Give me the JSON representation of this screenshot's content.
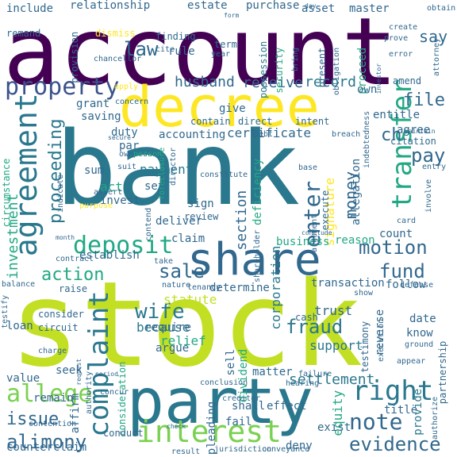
{
  "words": [
    {
      "text": "account",
      "color": "#440154"
    },
    {
      "text": "bank",
      "color": "#2a788e"
    },
    {
      "text": "stock",
      "color": "#c2df23"
    },
    {
      "text": "decree",
      "color": "#fde725"
    },
    {
      "text": "party",
      "color": "#2a788e"
    },
    {
      "text": "share",
      "color": "#31688e"
    },
    {
      "text": "agreement",
      "color": "#2a788e"
    },
    {
      "text": "property",
      "color": "#3b528b"
    },
    {
      "text": "interest",
      "color": "#7ad151"
    },
    {
      "text": "complaint",
      "color": "#2a788e"
    },
    {
      "text": "deposit",
      "color": "#22a884"
    },
    {
      "text": "right",
      "color": "#2a788e"
    },
    {
      "text": "allege",
      "color": "#7ad151"
    },
    {
      "text": "alimony",
      "color": "#31688e"
    },
    {
      "text": "note",
      "color": "#31688e"
    },
    {
      "text": "transfer",
      "color": "#22a884"
    },
    {
      "text": "enter",
      "color": "#31688e"
    },
    {
      "text": "proceeding",
      "color": "#2a788e"
    },
    {
      "text": "wife",
      "color": "#2a788e"
    },
    {
      "text": "sale",
      "color": "#31688e"
    },
    {
      "text": "action",
      "color": "#22a884"
    },
    {
      "text": "motion",
      "color": "#31688e"
    },
    {
      "text": "fund",
      "color": "#31688e"
    },
    {
      "text": "evidence",
      "color": "#31688e"
    },
    {
      "text": "fraud",
      "color": "#2a788e"
    },
    {
      "text": "issue",
      "color": "#31688e"
    },
    {
      "text": "file",
      "color": "#31688e"
    },
    {
      "text": "pay",
      "color": "#31688e"
    },
    {
      "text": "say",
      "color": "#31688e"
    },
    {
      "text": "law",
      "color": "#31688e"
    },
    {
      "text": "money",
      "color": "#31688e"
    },
    {
      "text": "investment",
      "color": "#22a884"
    },
    {
      "text": "section",
      "color": "#31688e"
    },
    {
      "text": "corporation",
      "color": "#2a788e"
    },
    {
      "text": "husband",
      "color": "#31688e"
    },
    {
      "text": "receive",
      "color": "#31688e"
    },
    {
      "text": "record",
      "color": "#2a788e"
    },
    {
      "text": "payment",
      "color": "#2a788e"
    },
    {
      "text": "certificate",
      "color": "#31688e"
    },
    {
      "text": "accounting",
      "color": "#31688e"
    },
    {
      "text": "signature",
      "color": "#fde725"
    },
    {
      "text": "settlement",
      "color": "#2a788e"
    },
    {
      "text": "support",
      "color": "#2a788e"
    },
    {
      "text": "trust",
      "color": "#31688e"
    },
    {
      "text": "relief",
      "color": "#22a884"
    },
    {
      "text": "because",
      "color": "#2a788e"
    },
    {
      "text": "equity",
      "color": "#22a884"
    },
    {
      "text": "provide",
      "color": "#2a788e"
    },
    {
      "text": "include",
      "color": "#31688e"
    },
    {
      "text": "relationship",
      "color": "#31688e"
    },
    {
      "text": "estate",
      "color": "#31688e"
    },
    {
      "text": "purchase",
      "color": "#31688e"
    },
    {
      "text": "asset",
      "color": "#31688e"
    },
    {
      "text": "master",
      "color": "#31688e"
    },
    {
      "text": "remand",
      "color": "#31688e"
    },
    {
      "text": "dismiss",
      "color": "#fde725"
    },
    {
      "text": "finding",
      "color": "#31688e"
    },
    {
      "text": "rule",
      "color": "#31688e"
    },
    {
      "text": "term",
      "color": "#31688e"
    },
    {
      "text": "year",
      "color": "#31688e"
    },
    {
      "text": "possession",
      "color": "#2a788e"
    },
    {
      "text": "security",
      "color": "#22a884"
    },
    {
      "text": "proceed",
      "color": "#22a884"
    },
    {
      "text": "present",
      "color": "#31688e"
    },
    {
      "text": "obligation",
      "color": "#31688e"
    },
    {
      "text": "provision",
      "color": "#31688e"
    },
    {
      "text": "chancellor",
      "color": "#31688e"
    },
    {
      "text": "grant",
      "color": "#31688e"
    },
    {
      "text": "concern",
      "color": "#31688e"
    },
    {
      "text": "saving",
      "color": "#31688e"
    },
    {
      "text": "duty",
      "color": "#31688e"
    },
    {
      "text": "par",
      "color": "#31688e"
    },
    {
      "text": "sum",
      "color": "#31688e"
    },
    {
      "text": "act",
      "color": "#22a884"
    },
    {
      "text": "invest",
      "color": "#31688e"
    },
    {
      "text": "set",
      "color": "#31688e"
    },
    {
      "text": "give",
      "color": "#31688e"
    },
    {
      "text": "contain",
      "color": "#31688e"
    },
    {
      "text": "direct",
      "color": "#31688e"
    },
    {
      "text": "intent",
      "color": "#31688e"
    },
    {
      "text": "entitle",
      "color": "#31688e"
    },
    {
      "text": "agree",
      "color": "#31688e"
    },
    {
      "text": "deficiency",
      "color": "#22a884"
    },
    {
      "text": "allegation",
      "color": "#31688e"
    },
    {
      "text": "execute",
      "color": "#31688e"
    },
    {
      "text": "ch",
      "color": "#31688e"
    },
    {
      "text": "apply",
      "color": "#fde725"
    },
    {
      "text": "amend",
      "color": "#31688e"
    },
    {
      "text": "citation",
      "color": "#31688e"
    },
    {
      "text": "breach",
      "color": "#31688e"
    },
    {
      "text": "debt",
      "color": "#31688e"
    },
    {
      "text": "director",
      "color": "#31688e"
    },
    {
      "text": "own",
      "color": "#31688e"
    },
    {
      "text": "foreclosure",
      "color": "#22a884"
    },
    {
      "text": "ownership",
      "color": "#31688e"
    },
    {
      "text": "circumstance",
      "color": "#22a884"
    },
    {
      "text": "indicate",
      "color": "#31688e"
    },
    {
      "text": "suit",
      "color": "#31688e"
    },
    {
      "text": "person",
      "color": "#22a884"
    },
    {
      "text": "assert",
      "color": "#31688e"
    },
    {
      "text": "purpose",
      "color": "#fde725"
    },
    {
      "text": "constitute",
      "color": "#31688e"
    },
    {
      "text": "sign",
      "color": "#31688e"
    },
    {
      "text": "review",
      "color": "#31688e"
    },
    {
      "text": "contend",
      "color": "#31688e"
    },
    {
      "text": "deliver",
      "color": "#31688e"
    },
    {
      "text": "establish",
      "color": "#31688e"
    },
    {
      "text": "claim",
      "color": "#31688e"
    },
    {
      "text": "take",
      "color": "#31688e"
    },
    {
      "text": "business",
      "color": "#22a884"
    },
    {
      "text": "shareholder",
      "color": "#31688e"
    },
    {
      "text": "reason",
      "color": "#22a884"
    },
    {
      "text": "count",
      "color": "#31688e"
    },
    {
      "text": "follow",
      "color": "#31688e"
    },
    {
      "text": "card",
      "color": "#31688e"
    },
    {
      "text": "entry",
      "color": "#31688e"
    },
    {
      "text": "involve",
      "color": "#31688e"
    },
    {
      "text": "base",
      "color": "#31688e"
    },
    {
      "text": "argument",
      "color": "#31688e"
    },
    {
      "text": "conclude",
      "color": "#31688e"
    },
    {
      "text": "statute",
      "color": "#c2df23"
    },
    {
      "text": "raise",
      "color": "#31688e"
    },
    {
      "text": "determine",
      "color": "#31688e"
    },
    {
      "text": "transaction",
      "color": "#31688e"
    },
    {
      "text": "show",
      "color": "#31688e"
    },
    {
      "text": "reverse",
      "color": "#31688e"
    },
    {
      "text": "testimony",
      "color": "#31688e"
    },
    {
      "text": "execution",
      "color": "#31688e"
    },
    {
      "text": "consider",
      "color": "#31688e"
    },
    {
      "text": "circuit",
      "color": "#31688e"
    },
    {
      "text": "loan",
      "color": "#31688e"
    },
    {
      "text": "charge",
      "color": "#31688e"
    },
    {
      "text": "require",
      "color": "#31688e"
    },
    {
      "text": "argue",
      "color": "#31688e"
    },
    {
      "text": "consideration",
      "color": "#22a884"
    },
    {
      "text": "sell",
      "color": "#31688e"
    },
    {
      "text": "dividend",
      "color": "#22a884"
    },
    {
      "text": "cash",
      "color": "#31688e"
    },
    {
      "text": "date",
      "color": "#31688e"
    },
    {
      "text": "know",
      "color": "#31688e"
    },
    {
      "text": "ground",
      "color": "#31688e"
    },
    {
      "text": "value",
      "color": "#31688e"
    },
    {
      "text": "seek",
      "color": "#31688e"
    },
    {
      "text": "remain",
      "color": "#31688e"
    },
    {
      "text": "affirm",
      "color": "#31688e"
    },
    {
      "text": "authority",
      "color": "#31688e"
    },
    {
      "text": "concur",
      "color": "#31688e"
    },
    {
      "text": "conclusion",
      "color": "#31688e"
    },
    {
      "text": "matter",
      "color": "#31688e"
    },
    {
      "text": "hearing",
      "color": "#31688e"
    },
    {
      "text": "failure",
      "color": "#31688e"
    },
    {
      "text": "appear",
      "color": "#31688e"
    },
    {
      "text": "partnership",
      "color": "#31688e"
    },
    {
      "text": "counterclaim",
      "color": "#31688e"
    },
    {
      "text": "contention",
      "color": "#31688e"
    },
    {
      "text": "conduct",
      "color": "#31688e"
    },
    {
      "text": "pleading",
      "color": "#31688e"
    },
    {
      "text": "shall",
      "color": "#31688e"
    },
    {
      "text": "effect",
      "color": "#31688e"
    },
    {
      "text": "fail",
      "color": "#31688e"
    },
    {
      "text": "creditor",
      "color": "#31688e"
    },
    {
      "text": "exist",
      "color": "#31688e"
    },
    {
      "text": "title",
      "color": "#31688e"
    },
    {
      "text": "deny",
      "color": "#31688e"
    },
    {
      "text": "result",
      "color": "#31688e"
    },
    {
      "text": "jurisdiction",
      "color": "#31688e"
    },
    {
      "text": "conveyance",
      "color": "#31688e"
    },
    {
      "text": "authorize",
      "color": "#31688e"
    },
    {
      "text": "check",
      "color": "#31688e"
    },
    {
      "text": "tenancy",
      "color": "#31688e"
    },
    {
      "text": "testify",
      "color": "#31688e"
    },
    {
      "text": "contract",
      "color": "#31688e"
    },
    {
      "text": "balance",
      "color": "#31688e"
    },
    {
      "text": "defense",
      "color": "#31688e"
    },
    {
      "text": "obtain",
      "color": "#31688e"
    },
    {
      "text": "prove",
      "color": "#31688e"
    },
    {
      "text": "attorney",
      "color": "#31688e"
    },
    {
      "text": "bring",
      "color": "#31688e"
    },
    {
      "text": "cite",
      "color": "#31688e"
    },
    {
      "text": "form",
      "color": "#31688e"
    },
    {
      "text": "day",
      "color": "#31688e"
    },
    {
      "text": "error",
      "color": "#31688e"
    },
    {
      "text": "create",
      "color": "#31688e"
    },
    {
      "text": "investor",
      "color": "#31688e"
    },
    {
      "text": "indebtedness",
      "color": "#31688e"
    },
    {
      "text": "secure",
      "color": "#31688e"
    },
    {
      "text": "maintain",
      "color": "#31688e"
    },
    {
      "text": "month",
      "color": "#31688e"
    },
    {
      "text": "nature",
      "color": "#31688e"
    },
    {
      "text": "request",
      "color": "#31688e"
    },
    {
      "text": "period",
      "color": "#31688e"
    }
  ]
}
